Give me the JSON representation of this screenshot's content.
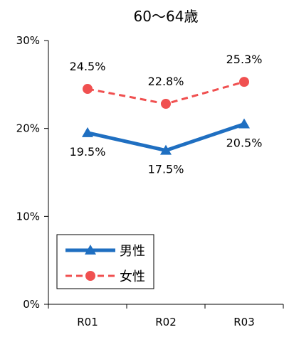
{
  "chart_data": {
    "type": "line",
    "title": "60〜64歳",
    "categories": [
      "R01",
      "R02",
      "R03"
    ],
    "y_ticks": [
      "0%",
      "10%",
      "20%",
      "30%"
    ],
    "ylim": [
      0,
      30
    ],
    "grid": false,
    "legend_position": "bottom-left",
    "series": [
      {
        "name": "男性",
        "values": [
          19.5,
          17.5,
          20.5
        ],
        "labels": [
          "19.5%",
          "17.5%",
          "20.5%"
        ],
        "color": "#1f6fc1",
        "line_style": "solid",
        "marker": "triangle",
        "label_position": "below"
      },
      {
        "name": "女性",
        "values": [
          24.5,
          22.8,
          25.3
        ],
        "labels": [
          "24.5%",
          "22.8%",
          "25.3%"
        ],
        "color": "#f05050",
        "line_style": "dashed",
        "marker": "circle",
        "label_position": "above"
      }
    ]
  }
}
